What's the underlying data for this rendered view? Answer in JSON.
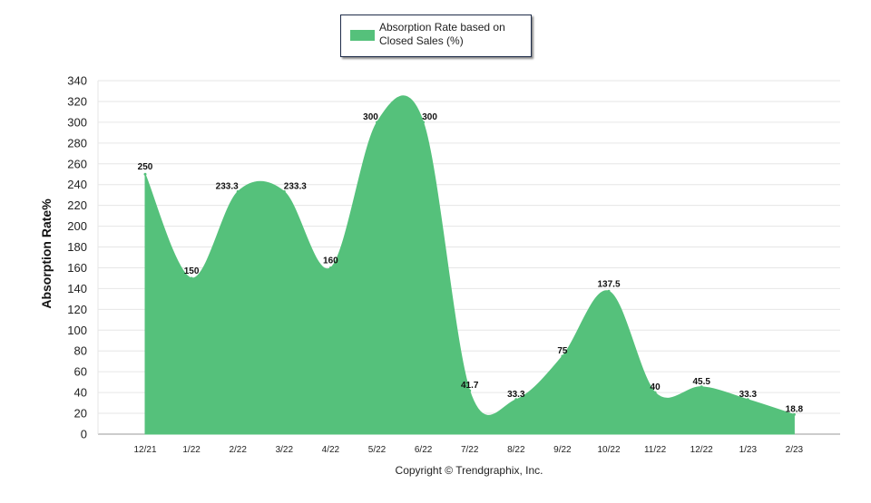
{
  "chart_data": {
    "type": "area",
    "categories": [
      "12/21",
      "1/22",
      "2/22",
      "3/22",
      "4/22",
      "5/22",
      "6/22",
      "7/22",
      "8/22",
      "9/22",
      "10/22",
      "11/22",
      "12/22",
      "1/23",
      "2/23"
    ],
    "series": [
      {
        "name": "Absorption Rate based on Closed Sales (%)",
        "values": [
          250,
          150,
          233.3,
          233.3,
          160,
          300,
          300,
          41.7,
          33.3,
          75,
          137.5,
          40,
          45.5,
          33.3,
          18.8
        ]
      }
    ],
    "data_labels": [
      "250",
      "150",
      "233.3",
      "233.3",
      "160",
      "300",
      "300",
      "41.7",
      "33.3",
      "75",
      "137.5",
      "40",
      "45.5",
      "33.3",
      "18.8"
    ],
    "yticks": [
      0,
      20,
      40,
      60,
      80,
      100,
      120,
      140,
      160,
      180,
      200,
      220,
      240,
      260,
      280,
      300,
      320,
      340
    ],
    "ylim": [
      0,
      340
    ],
    "ylabel": "Absorption Rate%",
    "xlabel": "",
    "grid": true,
    "legend_position": "top-center",
    "color": "#55c17b"
  },
  "legend": {
    "label_line1": "Absorption Rate based on",
    "label_line2": "Closed Sales (%)"
  },
  "footer": {
    "copyright": "Copyright © Trendgraphix, Inc."
  }
}
